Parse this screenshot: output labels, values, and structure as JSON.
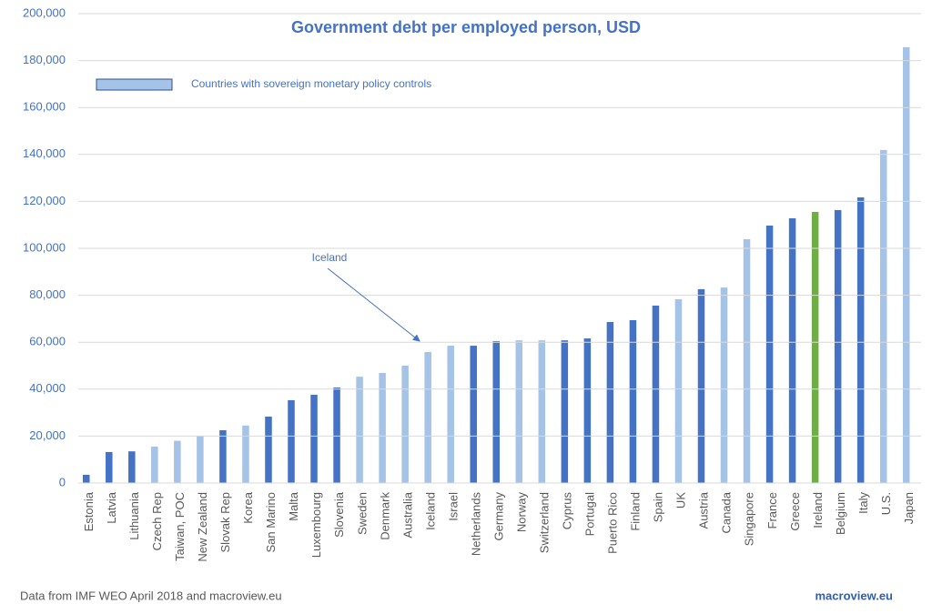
{
  "chart_data": {
    "type": "bar",
    "title": "Government debt per employed person, USD",
    "categories": [
      "Estonia",
      "Latvia",
      "Lithuania",
      "Czech Rep",
      "Taiwan, POC",
      "New Zealand",
      "Slovak Rep",
      "Korea",
      "San Marino",
      "Malta",
      "Luxembourg",
      "Slovenia",
      "Sweden",
      "Denmark",
      "Australia",
      "Iceland",
      "Israel",
      "Netherlands",
      "Germany",
      "Norway",
      "Switzerland",
      "Cyprus",
      "Portugal",
      "Puerto Rico",
      "Finland",
      "Spain",
      "UK",
      "Austria",
      "Canada",
      "Singapore",
      "France",
      "Greece",
      "Ireland",
      "Belgium",
      "Italy",
      "U.S.",
      "Japan"
    ],
    "values": [
      3500,
      13200,
      13500,
      15500,
      18000,
      20000,
      22500,
      24500,
      28300,
      35300,
      37600,
      40700,
      45300,
      46900,
      50000,
      55800,
      58500,
      58500,
      60500,
      60800,
      60800,
      60800,
      61600,
      68600,
      69400,
      75600,
      78300,
      82600,
      83300,
      103900,
      109700,
      112800,
      115500,
      116300,
      121700,
      141900,
      185700
    ],
    "colors": [
      "#4472c4",
      "#4472c4",
      "#4472c4",
      "#a5c3e6",
      "#a5c3e6",
      "#a5c3e6",
      "#4472c4",
      "#a5c3e6",
      "#4472c4",
      "#4472c4",
      "#4472c4",
      "#4472c4",
      "#a5c3e6",
      "#a5c3e6",
      "#a5c3e6",
      "#a5c3e6",
      "#a5c3e6",
      "#4472c4",
      "#4472c4",
      "#a5c3e6",
      "#a5c3e6",
      "#4472c4",
      "#4472c4",
      "#4472c4",
      "#4472c4",
      "#4472c4",
      "#a5c3e6",
      "#4472c4",
      "#a5c3e6",
      "#a5c3e6",
      "#4472c4",
      "#4472c4",
      "#70ad47",
      "#4472c4",
      "#4472c4",
      "#a5c3e6",
      "#a5c3e6"
    ],
    "ylim": [
      0,
      200000
    ],
    "yticks": [
      0,
      {
        "value": 20000,
        "label": "20,000"
      },
      {
        "value": 40000,
        "label": "40,000"
      },
      {
        "value": 60000,
        "label": "60,000"
      },
      {
        "value": 80000,
        "label": "80,000"
      },
      {
        "value": 100000,
        "label": "100,000"
      },
      {
        "value": 120000,
        "label": "120,000"
      },
      {
        "value": 140000,
        "label": "140,000"
      },
      {
        "value": 160000,
        "label": "160,000"
      },
      {
        "value": 180000,
        "label": "180,000"
      },
      {
        "value": 200000,
        "label": "200,000"
      }
    ],
    "grid": true,
    "legend": {
      "label": "Countries with sovereign monetary policy controls",
      "color": "#a5c3e6"
    },
    "annotation": "Iceland"
  },
  "footer": {
    "source": "Data from IMF WEO April 2018 and macroview.eu",
    "credit": "macroview.eu"
  }
}
